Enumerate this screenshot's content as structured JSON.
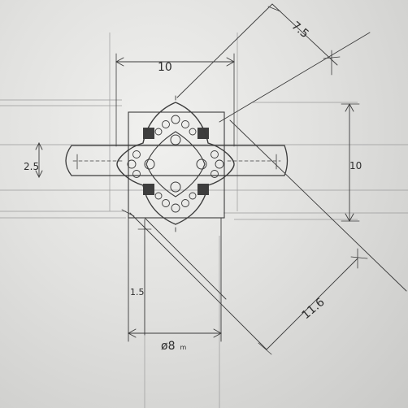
{
  "dimensions": {
    "top_width": "10",
    "diagonal_top": "7.5",
    "height_right": "10",
    "band_width": "2.5",
    "shank_offset": "1.5",
    "diagonal_bottom": "11.6",
    "ring_size_symbol": "ø",
    "ring_size_value": "8",
    "ring_size_unit": "m"
  }
}
